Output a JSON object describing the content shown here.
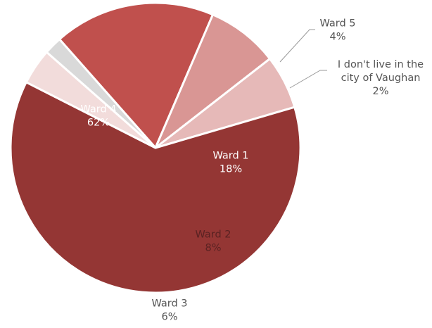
{
  "chart_data": {
    "type": "pie",
    "title": "",
    "slices": [
      {
        "name": "Ward 1",
        "value": 18,
        "value_label": "18%",
        "color": "#c0504d"
      },
      {
        "name": "Ward 2",
        "value": 8,
        "value_label": "8%",
        "color": "#d99694"
      },
      {
        "name": "Ward 3",
        "value": 6,
        "value_label": "6%",
        "color": "#e6b9b8"
      },
      {
        "name": "Ward 4",
        "value": 62,
        "value_label": "62%",
        "color": "#943634"
      },
      {
        "name": "Ward 5",
        "value": 4,
        "value_label": "4%",
        "color": "#f2dcdb"
      },
      {
        "name": "I don't live in the city of Vaughan",
        "name_lines": [
          "I don't live in the",
          "city of Vaughan"
        ],
        "value": 2,
        "value_label": "2%",
        "color": "#d9d9d9"
      }
    ]
  }
}
